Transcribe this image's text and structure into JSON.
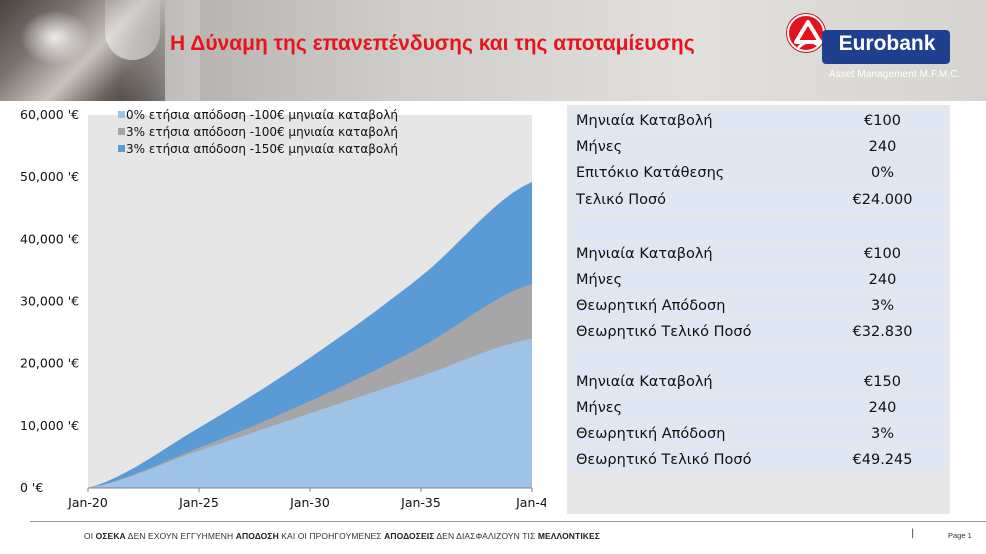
{
  "header": {
    "title": "Η Δύναμη της επανεπένδυσης και της αποταμίευσης",
    "brand": "Eurobank",
    "brand_sub": "Asset Management M.F.M.C.",
    "brand_color": "#1f3f8f",
    "accent_color": "#e3121b"
  },
  "chart_data": {
    "type": "area",
    "x": [
      "Jan-20",
      "Jan-25",
      "Jan-30",
      "Jan-35",
      "Jan-4"
    ],
    "ylim": [
      0,
      60000
    ],
    "yticks": [
      "0 '€",
      "10,000 '€",
      "20,000 '€",
      "30,000 '€",
      "40,000 '€",
      "50,000 '€",
      "60,000 '€"
    ],
    "yticks_values": [
      0,
      10000,
      20000,
      30000,
      40000,
      50000,
      60000
    ],
    "legend_position": "top-left",
    "grid": false,
    "series": [
      {
        "name": "0% ετήσια απόδοση -100€ μηνιαία καταβολή",
        "color": "#9fc3e7",
        "values": [
          0,
          6000,
          12000,
          18000,
          24000
        ]
      },
      {
        "name": "3% ετήσια απόδοση -100€ μηνιαία καταβολή",
        "color": "#a6a6a6",
        "values": [
          0,
          6464,
          13974,
          22703,
          32830
        ]
      },
      {
        "name": "3% ετήσια απόδοση -150€ μηνιαία καταβολή",
        "color": "#5b9bd5",
        "values": [
          0,
          9696,
          20961,
          34055,
          49245
        ]
      }
    ]
  },
  "table": {
    "groups": [
      {
        "rows": [
          {
            "label": "Μηνιαία Καταβολή",
            "value": "€100"
          },
          {
            "label": "Μήνες",
            "value": "240"
          },
          {
            "label": "Επιτόκιο Κατάθεσης",
            "value": "0%"
          },
          {
            "label": "Τελικό Ποσό",
            "value": "€24.000"
          }
        ]
      },
      {
        "rows": [
          {
            "label": "Μηνιαία Καταβολή",
            "value": "€100"
          },
          {
            "label": "Μήνες",
            "value": "240"
          },
          {
            "label": "Θεωρητική Απόδοση",
            "value": "3%"
          },
          {
            "label": "Θεωρητικό Τελικό Ποσό",
            "value": "€32.830"
          }
        ]
      },
      {
        "rows": [
          {
            "label": "Μηνιαία Καταβολή",
            "value": "€150"
          },
          {
            "label": "Μήνες",
            "value": "240"
          },
          {
            "label": "Θεωρητική Απόδοση",
            "value": "3%"
          },
          {
            "label": "Θεωρητικό Τελικό Ποσό",
            "value": "€49.245"
          }
        ]
      }
    ]
  },
  "footer": {
    "t1": "ΟΙ ",
    "b1": "ΟΣΕΚΑ",
    "t2": " ΔΕΝ ΕΧΟΥΝ ΕΓΓΥΗΜΕΝΗ ",
    "b2": "ΑΠΟΔΟΣΗ",
    "t3": " ΚΑΙ ΟΙ ΠΡΟΗΓΟΥΜΕΝΕΣ ",
    "b3": "ΑΠΟΔΟΣΕΙΣ",
    "t4": " ΔΕΝ ΔΙΑΣΦΑΛΙΖΟΥΝ ΤΙΣ ",
    "b4": "ΜΕΛΛΟΝΤΙΚΕΣ",
    "separator": "|",
    "page": "Page 1"
  }
}
